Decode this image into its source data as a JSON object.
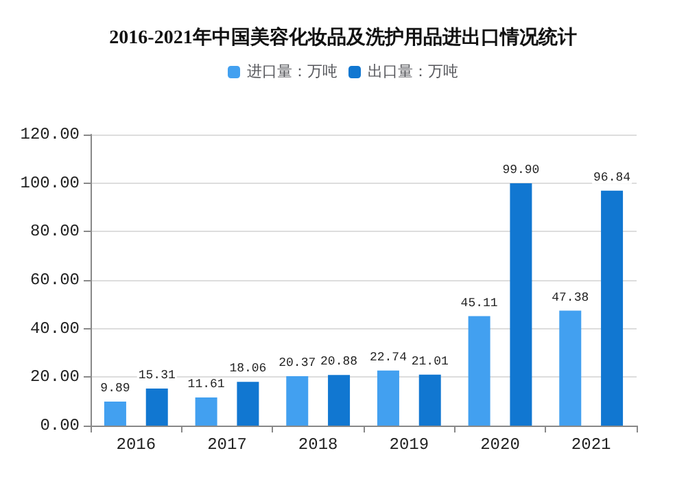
{
  "chart_data": {
    "type": "bar",
    "title": "2016-2021年中国美容化妆品及洗护用品进出口情况统计",
    "categories": [
      "2016",
      "2017",
      "2018",
      "2019",
      "2020",
      "2021"
    ],
    "series": [
      {
        "name": "进口量：万吨",
        "color": "#42a0f0",
        "values": [
          9.89,
          11.61,
          20.37,
          22.74,
          45.11,
          47.38
        ],
        "value_labels": [
          "9.89",
          "11.61",
          "20.37",
          "22.74",
          "45.11",
          "47.38"
        ]
      },
      {
        "name": "出口量：万吨",
        "color": "#1177d1",
        "values": [
          15.31,
          18.06,
          20.88,
          21.01,
          99.9,
          96.84
        ],
        "value_labels": [
          "15.31",
          "18.06",
          "20.88",
          "21.01",
          "99.90",
          "96.84"
        ]
      }
    ],
    "ylim": [
      0,
      120
    ],
    "yticks": [
      {
        "value": 0,
        "label": "0.00"
      },
      {
        "value": 20,
        "label": "20.00"
      },
      {
        "value": 40,
        "label": "40.00"
      },
      {
        "value": 60,
        "label": "60.00"
      },
      {
        "value": 80,
        "label": "80.00"
      },
      {
        "value": 100,
        "label": "100.00"
      },
      {
        "value": 120,
        "label": "120.00"
      }
    ],
    "grid": "y",
    "legend": "top"
  }
}
